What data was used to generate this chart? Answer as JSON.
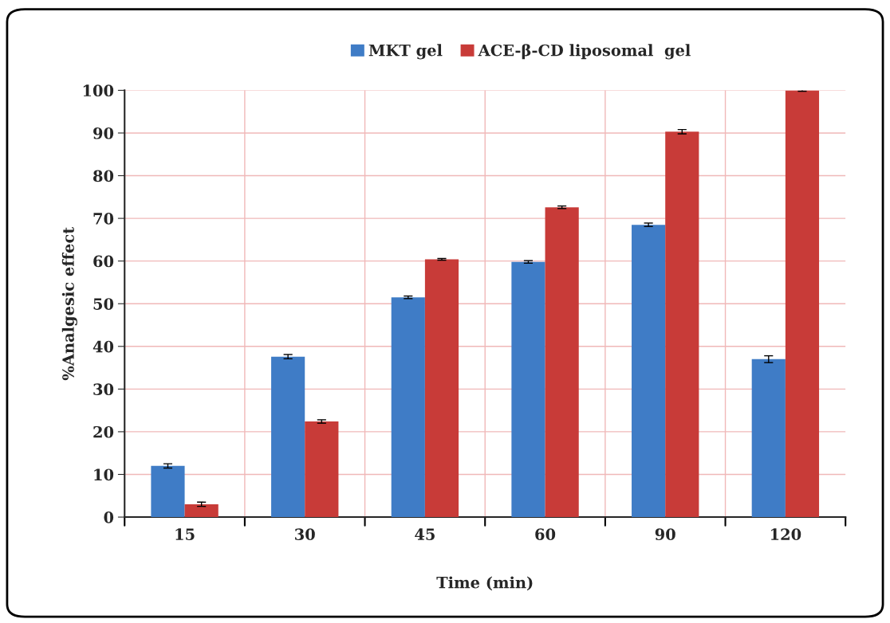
{
  "chart_data": {
    "type": "bar",
    "xlabel": "Time (min)",
    "ylabel": "%Analgesic effect",
    "categories": [
      "15",
      "30",
      "45",
      "60",
      "90",
      "120"
    ],
    "series": [
      {
        "name": "MKT gel",
        "color": "#3f7cc6",
        "values": [
          12,
          37.6,
          51.5,
          59.8,
          68.5,
          37
        ],
        "errors": [
          0.5,
          0.5,
          0.3,
          0.3,
          0.4,
          0.8
        ]
      },
      {
        "name": "ACE-β-CD liposomal  gel",
        "color": "#c83b38",
        "values": [
          3,
          22.4,
          60.4,
          72.6,
          90.3,
          100
        ],
        "errors": [
          0.5,
          0.4,
          0.2,
          0.3,
          0.5,
          0.2
        ]
      }
    ],
    "ylim": [
      0,
      100
    ],
    "yticks": [
      0,
      10,
      20,
      30,
      40,
      50,
      60,
      70,
      80,
      90,
      100
    ],
    "grid": true,
    "legend": "top"
  }
}
